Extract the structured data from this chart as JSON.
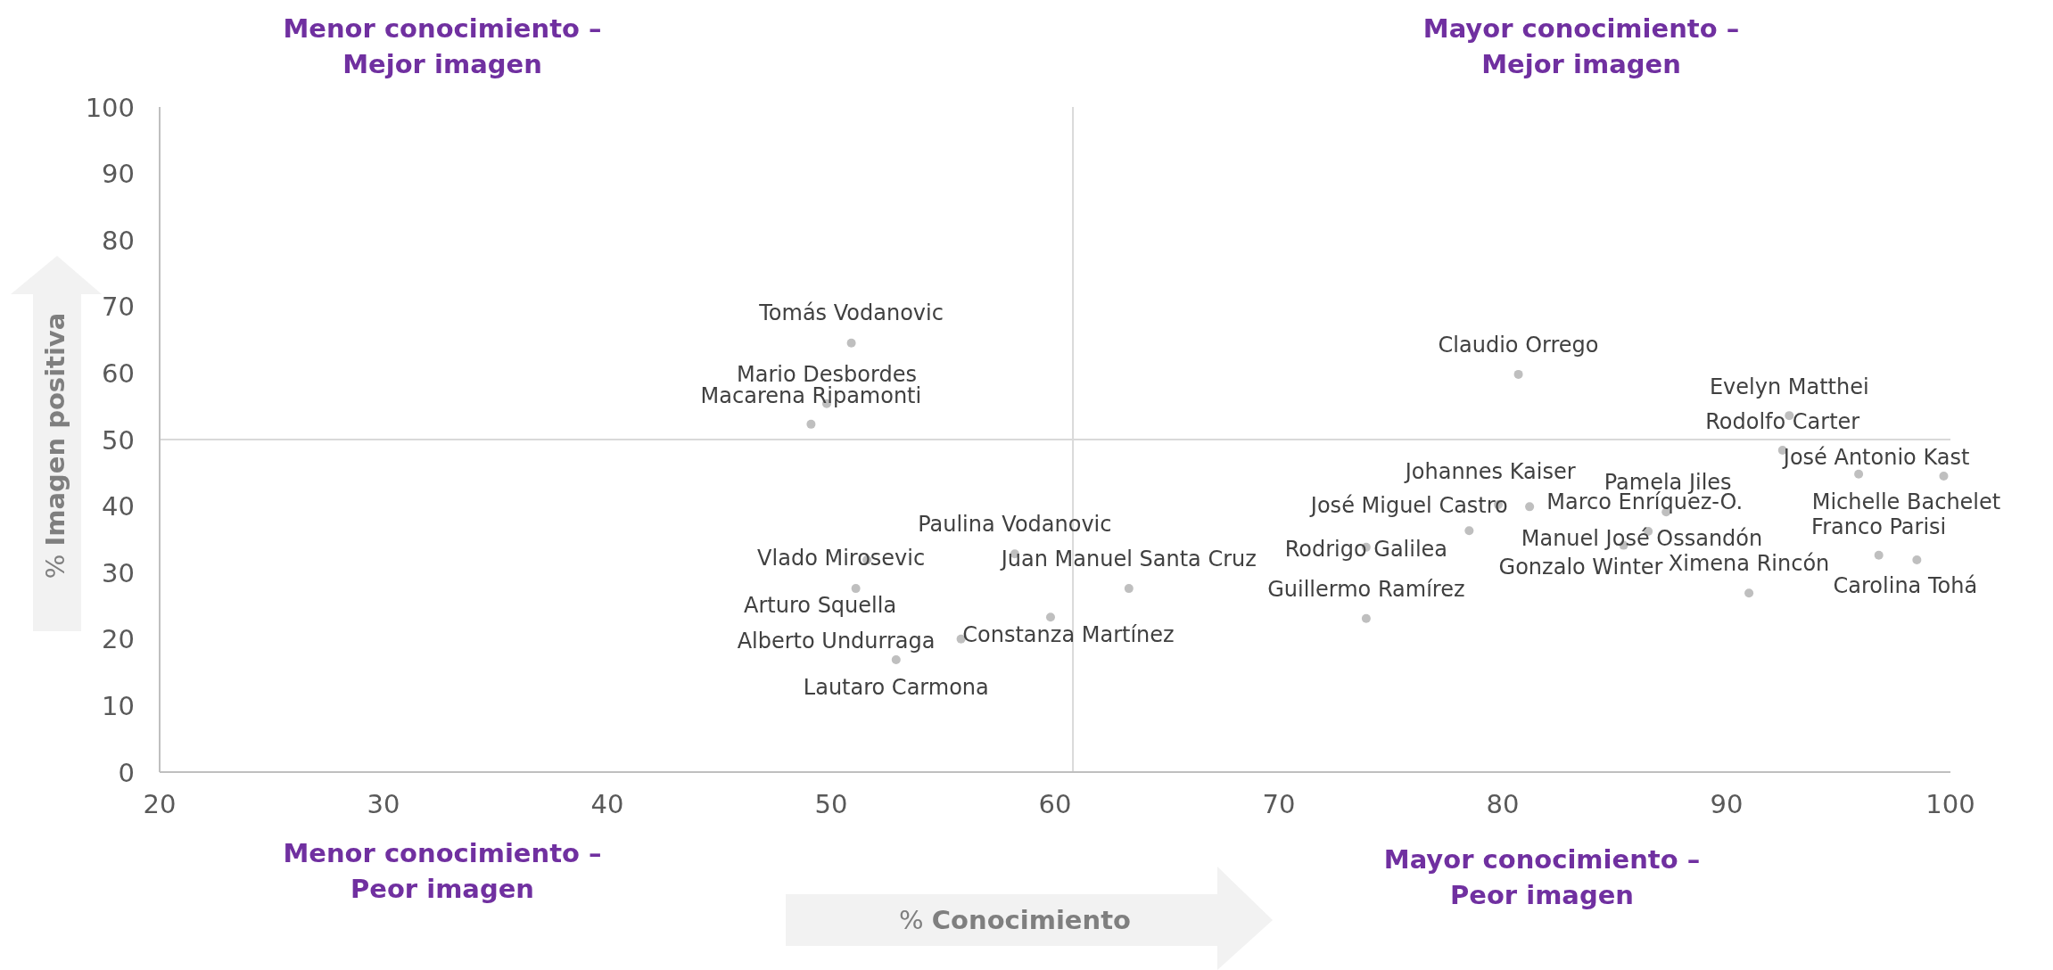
{
  "chart_data": {
    "type": "scatter",
    "xlabel": "% Conocimiento",
    "ylabel": "% Imagen positiva",
    "xlim": [
      20,
      100
    ],
    "ylim": [
      0,
      100
    ],
    "xticks": [
      20,
      30,
      40,
      50,
      60,
      70,
      80,
      90,
      100
    ],
    "yticks": [
      0,
      10,
      20,
      30,
      40,
      50,
      60,
      70,
      80,
      90,
      100
    ],
    "grid": false,
    "marker": "circle",
    "series": [
      {
        "color": "#bfbfbf",
        "x": [
          50.9,
          49.8,
          49.1,
          58.2,
          51.6,
          51.1,
          63.3,
          59.8,
          55.8,
          52.9,
          80.7,
          92.8,
          92.5,
          95.9,
          99.7,
          96.8,
          98.5,
          91.0,
          81.2,
          78.5,
          79.8,
          87.3,
          86.5,
          85.4,
          73.9,
          73.9
        ],
        "values": [
          64.5,
          55.4,
          52.3,
          32.8,
          31.9,
          27.6,
          27.6,
          23.3,
          20.0,
          16.9,
          59.8,
          53.6,
          48.4,
          44.8,
          44.5,
          32.6,
          31.9,
          26.9,
          39.9,
          36.3,
          40.2,
          39.1,
          36.2,
          34.1,
          33.8,
          23.1
        ]
      }
    ],
    "ref_lines": [
      {
        "axis": "x",
        "value": 60.8,
        "color": "#d9d9d9"
      },
      {
        "axis": "y",
        "value": 50,
        "color": "#d9d9d9"
      }
    ],
    "annotations": [
      {
        "text": "Tomás Vodanovic",
        "x": 50.9,
        "y": 64.5
      },
      {
        "text": "Mario Desbordes",
        "x": 49.8,
        "y": 55.4
      },
      {
        "text": "Macarena Ripamonti",
        "x": 49.1,
        "y": 52.3
      },
      {
        "text": "Paulina Vodanovic",
        "x": 58.2,
        "y": 32.8
      },
      {
        "text": "Vlado Mirosevic",
        "x": 51.6,
        "y": 31.9
      },
      {
        "text": "Arturo Squella",
        "x": 51.1,
        "y": 27.6
      },
      {
        "text": "Juan Manuel Santa Cruz",
        "x": 63.3,
        "y": 27.6
      },
      {
        "text": "Constanza Martínez",
        "x": 59.8,
        "y": 23.3
      },
      {
        "text": "Alberto Undurraga",
        "x": 55.8,
        "y": 20.0
      },
      {
        "text": "Lautaro Carmona",
        "x": 52.9,
        "y": 16.9
      },
      {
        "text": "Claudio Orrego",
        "x": 80.7,
        "y": 59.8
      },
      {
        "text": "Evelyn Matthei",
        "x": 92.8,
        "y": 53.6
      },
      {
        "text": "Rodolfo Carter",
        "x": 92.5,
        "y": 48.4
      },
      {
        "text": "José Antonio Kast",
        "x": 95.9,
        "y": 44.8
      },
      {
        "text": "Michelle Bachelet",
        "x": 99.7,
        "y": 44.5
      },
      {
        "text": "Franco Parisi",
        "x": 96.8,
        "y": 32.6
      },
      {
        "text": "Carolina Tohá",
        "x": 98.5,
        "y": 31.9
      },
      {
        "text": "Ximena Rincón",
        "x": 91.0,
        "y": 26.9
      },
      {
        "text": "Johannes Kaiser",
        "x": 81.2,
        "y": 39.9
      },
      {
        "text": "José Miguel Castro",
        "x": 78.5,
        "y": 36.3
      },
      {
        "text": "Manuel José Ossandón",
        "x": 79.8,
        "y": 40.2
      },
      {
        "text": "Marco Enríquez-O.",
        "x": 87.3,
        "y": 39.1
      },
      {
        "text": "Pamela Jiles",
        "x": 86.5,
        "y": 36.2
      },
      {
        "text": "Gonzalo Winter",
        "x": 85.4,
        "y": 34.1
      },
      {
        "text": "Rodrigo Galilea",
        "x": 73.9,
        "y": 33.8
      },
      {
        "text": "Guillermo Ramírez",
        "x": 73.9,
        "y": 23.1
      },
      "Menor conocimiento –\nMejor imagen",
      "Mayor conocimiento –\nMejor imagen",
      "Menor conocimiento –\nPeor imagen",
      "Mayor conocimiento –\nPeor imagen"
    ]
  }
}
